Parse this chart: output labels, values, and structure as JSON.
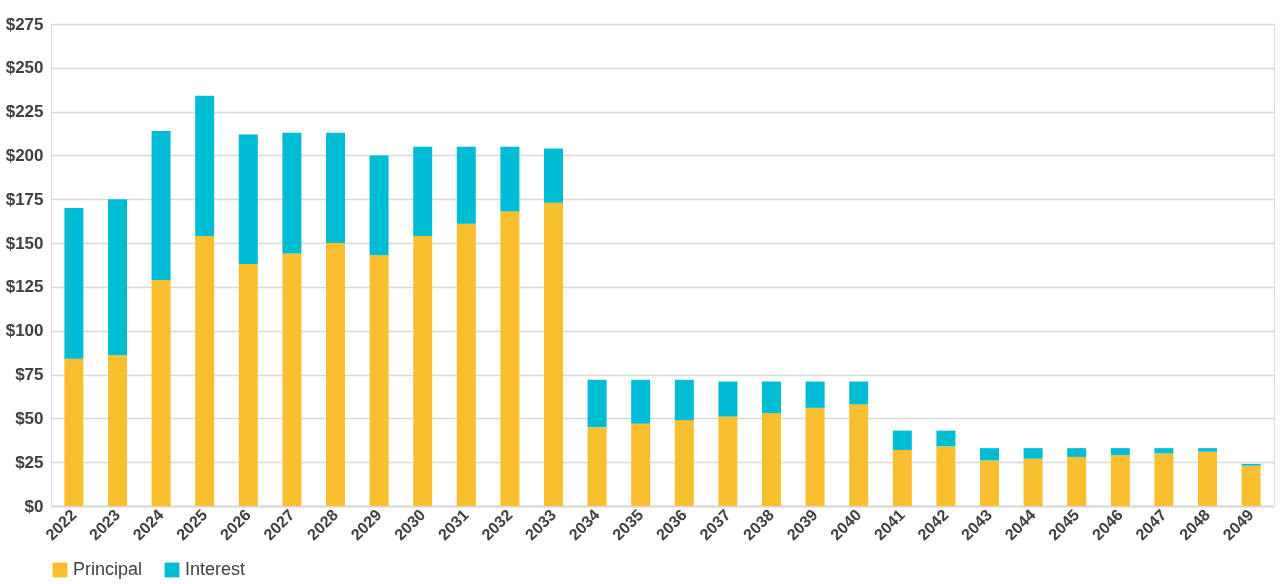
{
  "chart_data": {
    "type": "bar",
    "stacked": true,
    "categories": [
      "2022",
      "2023",
      "2024",
      "2025",
      "2026",
      "2027",
      "2028",
      "2029",
      "2030",
      "2031",
      "2032",
      "2033",
      "2034",
      "2035",
      "2036",
      "2037",
      "2038",
      "2039",
      "2040",
      "2041",
      "2042",
      "2043",
      "2044",
      "2045",
      "2046",
      "2047",
      "2048",
      "2049"
    ],
    "series": [
      {
        "name": "Principal",
        "color": "#f9bf2e",
        "values": [
          84,
          86,
          129,
          154,
          138,
          144,
          150,
          143,
          154,
          161,
          168,
          173,
          45,
          47,
          49,
          51,
          53,
          56,
          58,
          32,
          34,
          26,
          27,
          28,
          29,
          30,
          31,
          23
        ]
      },
      {
        "name": "Interest",
        "color": "#00bcd4",
        "values": [
          86,
          89,
          85,
          80,
          74,
          69,
          63,
          57,
          51,
          44,
          37,
          31,
          27,
          25,
          23,
          20,
          18,
          15,
          13,
          11,
          9,
          7,
          6,
          5,
          4,
          3,
          2,
          1
        ]
      }
    ],
    "ylim": [
      0,
      275
    ],
    "yticks": [
      {
        "value": 0,
        "label": "$0"
      },
      {
        "value": 25,
        "label": "$25"
      },
      {
        "value": 50,
        "label": "$50"
      },
      {
        "value": 75,
        "label": "$75"
      },
      {
        "value": 100,
        "label": "$100"
      },
      {
        "value": 125,
        "label": "$125"
      },
      {
        "value": 150,
        "label": "$150"
      },
      {
        "value": 175,
        "label": "$175"
      },
      {
        "value": 200,
        "label": "$200"
      },
      {
        "value": 225,
        "label": "$225"
      },
      {
        "value": 250,
        "label": "$250"
      },
      {
        "value": 275,
        "label": "$275"
      }
    ],
    "grid": "y",
    "legend": "bottom"
  }
}
